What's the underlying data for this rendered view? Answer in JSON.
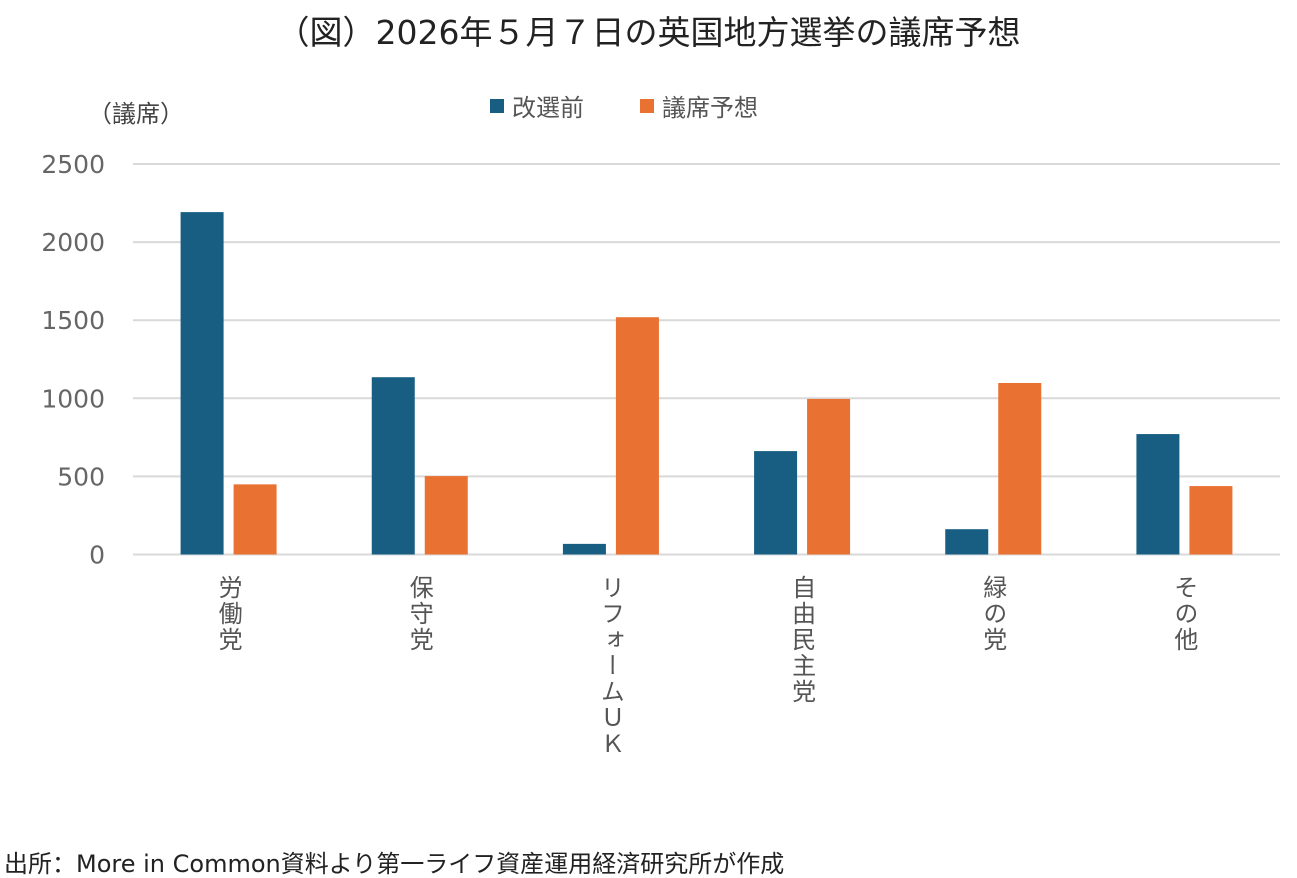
{
  "chart_data": {
    "type": "bar",
    "title": "（図）2026年５月７日の英国地方選挙の議席予想",
    "ylabel": "（議席）",
    "xlabel": "",
    "ylim": [
      0,
      2500
    ],
    "yticks": [
      0,
      500,
      1000,
      1500,
      2000,
      2500
    ],
    "grid": true,
    "legend_position": "top-center",
    "categories": [
      "労働党",
      "保守党",
      "リフォームＵＫ",
      "自由民主党",
      "緑の党",
      "その他"
    ],
    "series": [
      {
        "name": "改選前",
        "color": "#175e82",
        "values": [
          2192,
          1135,
          68,
          662,
          162,
          771
        ]
      },
      {
        "name": "議席予想",
        "color": "#e97132",
        "values": [
          449,
          502,
          1519,
          996,
          1098,
          438
        ]
      }
    ]
  },
  "source": "出所：More in Common資料より第一ライフ資産運用経済研究所が作成"
}
